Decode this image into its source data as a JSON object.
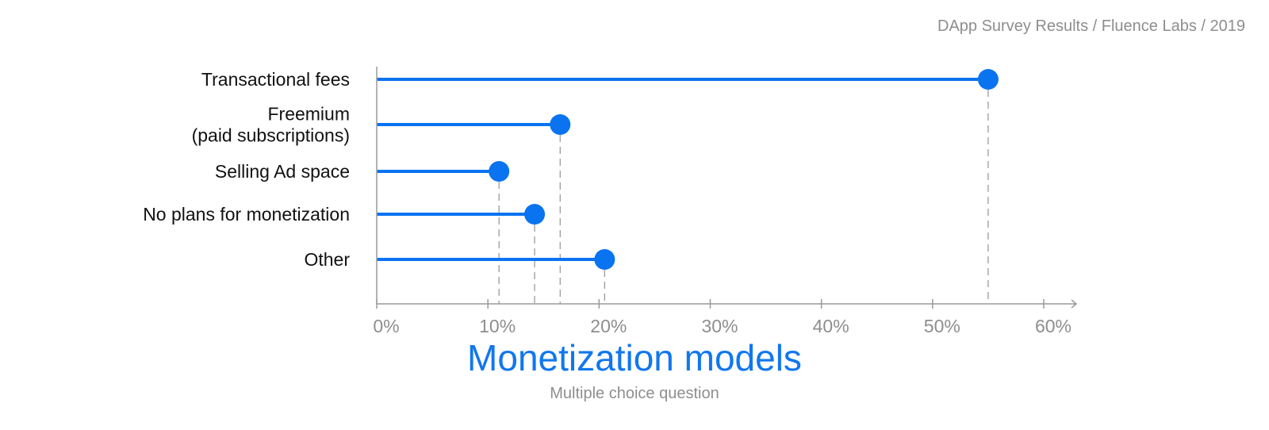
{
  "header": {
    "source": "DApp Survey Results / Fluence Labs / 2019"
  },
  "chart_data": {
    "type": "lollipop",
    "title": "Monetization models",
    "subtitle": "Multiple choice question",
    "categories": [
      [
        "Transactional fees"
      ],
      [
        "Freemium",
        "(paid subscriptions)"
      ],
      [
        "Selling Ad space"
      ],
      [
        "No plans for monetization"
      ],
      [
        "Other"
      ]
    ],
    "values": [
      55,
      16.5,
      11,
      14.2,
      20.5
    ],
    "xlim": [
      0,
      60
    ],
    "xticks": [
      0,
      10,
      20,
      30,
      40,
      50,
      60
    ],
    "xtick_labels": [
      "0%",
      "10%",
      "20%",
      "30%",
      "40%",
      "50%",
      "60%"
    ],
    "value_unit": "%",
    "grid": false,
    "reference_lines": "dashed vertical line from each marker down to the x-axis",
    "colors": {
      "marker": "#0a73f0",
      "axis": "#9a9a9a",
      "guide": "#9a9a9a"
    }
  }
}
